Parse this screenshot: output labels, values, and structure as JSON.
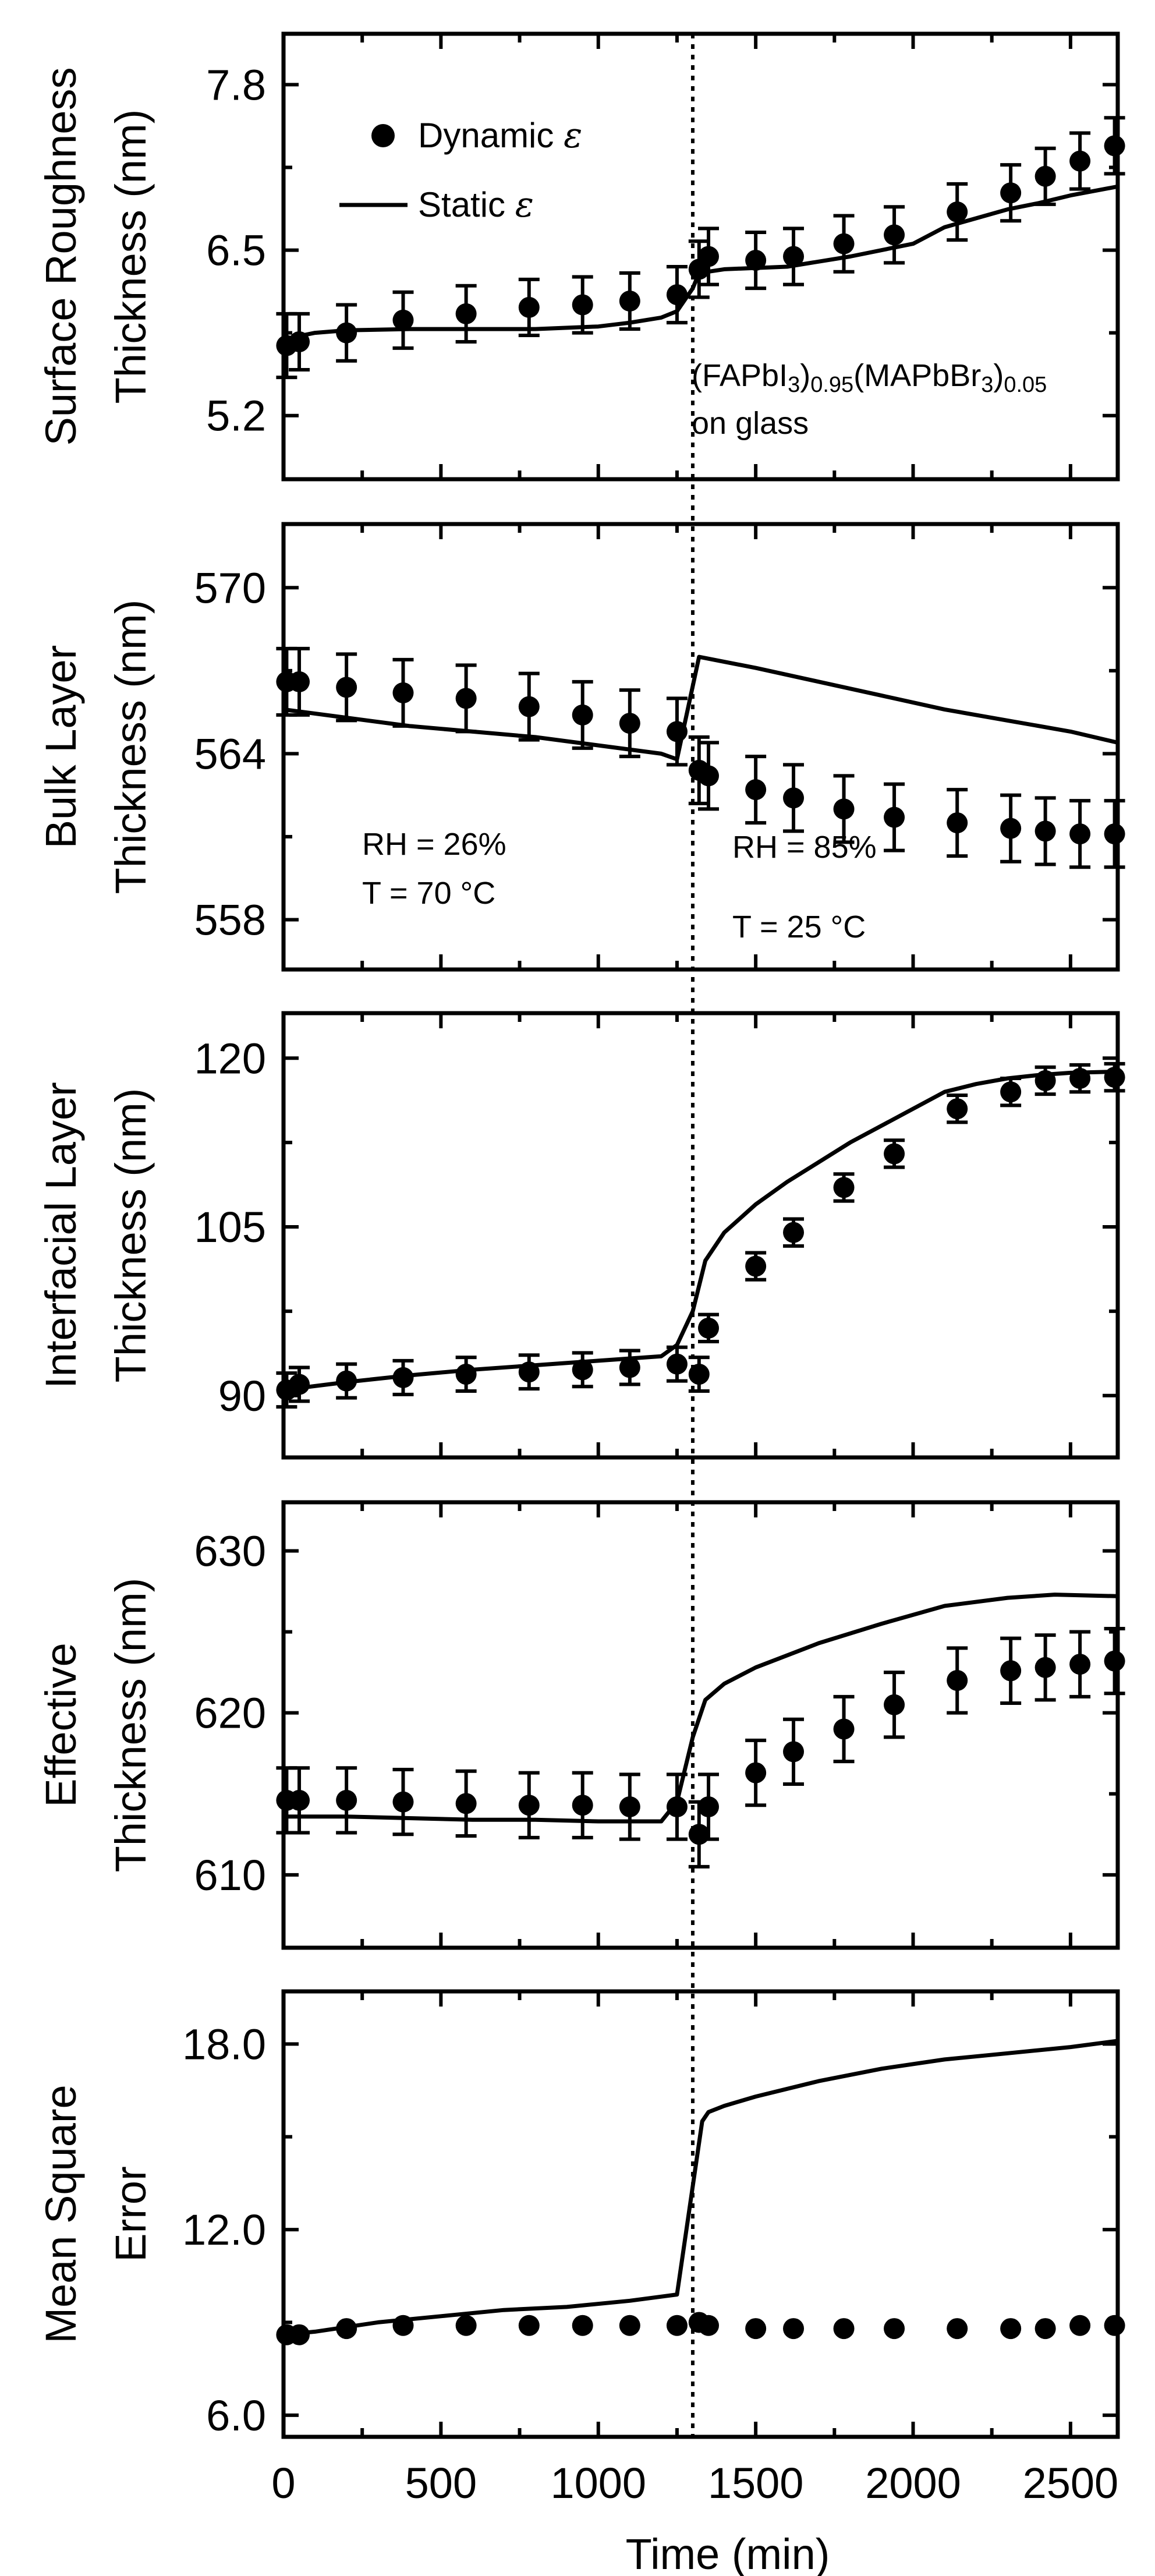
{
  "chart_data": {
    "type": "scatter",
    "figure": "Stacked panels sharing the time axis",
    "x_axis": {
      "label": "Time (min)",
      "range": [
        0,
        2650
      ],
      "ticks": [
        0,
        500,
        1000,
        1500,
        2000,
        2500
      ],
      "tick_labels": [
        "0",
        "500",
        "1000",
        "1500",
        "2000",
        "2500"
      ]
    },
    "condition_change_x": 1300,
    "legend": {
      "placement": "top-left",
      "dynamic_text": "Dynamic",
      "static_text": "Static",
      "symbol": "ε"
    },
    "material": {
      "line1": {
        "t1": "(FAPbI",
        "s1": "3",
        "t2": ")",
        "s2": "0.95",
        "t3": "(MAPbBr",
        "s3": "3",
        "t4": ")",
        "s4": "0.05"
      },
      "line2": "on glass"
    },
    "conditions": {
      "left_rh": "RH = 26%",
      "left_t": "T = 70 °C",
      "right_rh": "RH = 85%",
      "right_t": "T = 25 °C"
    },
    "panels": [
      {
        "id": "surface",
        "ylabel": [
          "Surface Roughness",
          "Thickness (nm)"
        ],
        "ylim": [
          4.7,
          8.2
        ],
        "yticks": [
          5.2,
          6.5,
          7.8
        ],
        "ytick_labels": [
          "5.2",
          "6.5",
          "7.8"
        ],
        "series": [
          {
            "name": "Dynamic ε",
            "kind": "points",
            "x": [
              10,
              50,
              200,
              380,
              580,
              780,
              950,
              1100,
              1250,
              1320,
              1350,
              1500,
              1620,
              1780,
              1940,
              2140,
              2310,
              2420,
              2530,
              2640
            ],
            "y": [
              5.75,
              5.78,
              5.85,
              5.95,
              6.0,
              6.05,
              6.07,
              6.1,
              6.15,
              6.35,
              6.45,
              6.42,
              6.45,
              6.55,
              6.62,
              6.8,
              6.95,
              7.08,
              7.2,
              7.32
            ],
            "err": [
              0.25,
              0.22,
              0.22,
              0.22,
              0.22,
              0.22,
              0.22,
              0.22,
              0.22,
              0.22,
              0.22,
              0.22,
              0.22,
              0.22,
              0.22,
              0.22,
              0.22,
              0.22,
              0.22,
              0.22
            ]
          },
          {
            "name": "Static ε",
            "kind": "line",
            "x": [
              0,
              100,
              200,
              400,
              600,
              800,
              1000,
              1100,
              1200,
              1250,
              1300,
              1320,
              1400,
              1600,
              1800,
              2000,
              2100,
              2200,
              2300,
              2400,
              2500,
              2650
            ],
            "y": [
              5.8,
              5.85,
              5.87,
              5.88,
              5.88,
              5.88,
              5.9,
              5.93,
              5.97,
              6.02,
              6.2,
              6.32,
              6.35,
              6.37,
              6.45,
              6.55,
              6.68,
              6.75,
              6.82,
              6.87,
              6.93,
              7.0
            ]
          }
        ]
      },
      {
        "id": "bulk",
        "ylabel": [
          "Bulk Layer",
          "Thickness (nm)"
        ],
        "ylim": [
          556.2,
          572.3
        ],
        "yticks": [
          558,
          564,
          570
        ],
        "ytick_labels": [
          "558",
          "564",
          "570"
        ],
        "series": [
          {
            "name": "Dynamic ε",
            "kind": "points",
            "x": [
              10,
              50,
              200,
              380,
              580,
              780,
              950,
              1100,
              1250,
              1320,
              1350,
              1500,
              1620,
              1780,
              1940,
              2140,
              2310,
              2420,
              2530,
              2640
            ],
            "y": [
              566.6,
              566.6,
              566.4,
              566.2,
              566.0,
              565.7,
              565.4,
              565.1,
              564.8,
              563.4,
              563.2,
              562.7,
              562.4,
              562.0,
              561.7,
              561.5,
              561.3,
              561.2,
              561.1,
              561.1
            ],
            "err": [
              1.2,
              1.2,
              1.2,
              1.2,
              1.2,
              1.2,
              1.2,
              1.2,
              1.2,
              1.2,
              1.2,
              1.2,
              1.2,
              1.2,
              1.2,
              1.2,
              1.2,
              1.2,
              1.2,
              1.2
            ]
          },
          {
            "name": "Static ε",
            "kind": "line",
            "x": [
              0,
              200,
              400,
              600,
              800,
              1000,
              1200,
              1250,
              1320,
              1500,
              1700,
              1900,
              2100,
              2300,
              2500,
              2650
            ],
            "y": [
              565.6,
              565.3,
              565.0,
              564.8,
              564.6,
              564.3,
              564.0,
              563.8,
              567.5,
              567.1,
              566.6,
              566.1,
              565.6,
              565.2,
              564.8,
              564.4
            ]
          }
        ]
      },
      {
        "id": "interfacial",
        "ylabel": [
          "Interfacial Layer",
          "Thickness (nm)"
        ],
        "ylim": [
          84.5,
          124
        ],
        "yticks": [
          90,
          105,
          120
        ],
        "ytick_labels": [
          "90",
          "105",
          "120"
        ],
        "series": [
          {
            "name": "Dynamic ε",
            "kind": "points",
            "x": [
              10,
              50,
              200,
              380,
              580,
              780,
              950,
              1100,
              1250,
              1320,
              1350,
              1500,
              1620,
              1780,
              1940,
              2140,
              2310,
              2420,
              2530,
              2640
            ],
            "y": [
              90.5,
              91.0,
              91.3,
              91.6,
              91.9,
              92.1,
              92.3,
              92.5,
              92.8,
              91.9,
              96.0,
              101.5,
              104.5,
              108.5,
              111.5,
              115.5,
              117.0,
              118.0,
              118.2,
              118.3
            ],
            "err": [
              1.5,
              1.5,
              1.5,
              1.5,
              1.5,
              1.5,
              1.5,
              1.5,
              1.5,
              1.5,
              1.2,
              1.2,
              1.2,
              1.2,
              1.2,
              1.2,
              1.2,
              1.2,
              1.2,
              1.2
            ]
          },
          {
            "name": "Static ε",
            "kind": "line",
            "x": [
              0,
              200,
              400,
              600,
              800,
              1000,
              1200,
              1250,
              1300,
              1340,
              1400,
              1500,
              1600,
              1800,
              2000,
              2100,
              2200,
              2300,
              2400,
              2500,
              2650
            ],
            "y": [
              90.5,
              91.2,
              91.8,
              92.3,
              92.7,
              93.1,
              93.5,
              94.5,
              97.5,
              102.0,
              104.5,
              107.0,
              109.0,
              112.5,
              115.5,
              117.0,
              117.7,
              118.2,
              118.5,
              118.7,
              118.8
            ]
          }
        ]
      },
      {
        "id": "effective",
        "ylabel": [
          "Effective",
          "Thickness (nm)"
        ],
        "ylim": [
          605.5,
          633
        ],
        "yticks": [
          610,
          620,
          630
        ],
        "ytick_labels": [
          "610",
          "620",
          "630"
        ],
        "series": [
          {
            "name": "Dynamic ε",
            "kind": "points",
            "x": [
              10,
              50,
              200,
              380,
              580,
              780,
              950,
              1100,
              1250,
              1320,
              1350,
              1500,
              1620,
              1780,
              1940,
              2140,
              2310,
              2420,
              2530,
              2640
            ],
            "y": [
              614.6,
              614.6,
              614.6,
              614.5,
              614.4,
              614.3,
              614.3,
              614.2,
              614.2,
              612.5,
              614.2,
              616.3,
              617.6,
              619.0,
              620.5,
              622.0,
              622.6,
              622.8,
              623.0,
              623.2
            ],
            "err": [
              2.0,
              2.0,
              2.0,
              2.0,
              2.0,
              2.0,
              2.0,
              2.0,
              2.0,
              2.0,
              2.0,
              2.0,
              2.0,
              2.0,
              2.0,
              2.0,
              2.0,
              2.0,
              2.0,
              2.0
            ]
          },
          {
            "name": "Static ε",
            "kind": "line",
            "x": [
              0,
              200,
              400,
              600,
              800,
              1000,
              1200,
              1250,
              1300,
              1340,
              1400,
              1500,
              1700,
              1900,
              2100,
              2300,
              2450,
              2650
            ],
            "y": [
              613.6,
              613.6,
              613.5,
              613.4,
              613.4,
              613.3,
              613.3,
              614.5,
              618.5,
              620.8,
              621.8,
              622.8,
              624.3,
              625.5,
              626.6,
              627.1,
              627.3,
              627.2
            ]
          }
        ]
      },
      {
        "id": "mse",
        "ylabel": [
          "Mean Square",
          "Error"
        ],
        "ylim": [
          5.3,
          19.7
        ],
        "yticks": [
          6.0,
          12.0,
          18.0
        ],
        "ytick_labels": [
          "6.0",
          "12.0",
          "18.0"
        ],
        "series": [
          {
            "name": "Dynamic ε",
            "kind": "points",
            "x": [
              10,
              50,
              200,
              380,
              580,
              780,
              950,
              1100,
              1250,
              1320,
              1350,
              1500,
              1620,
              1780,
              1940,
              2140,
              2310,
              2420,
              2530,
              2640
            ],
            "y": [
              8.6,
              8.6,
              8.8,
              8.9,
              8.9,
              8.9,
              8.9,
              8.9,
              8.9,
              9.0,
              8.9,
              8.8,
              8.8,
              8.8,
              8.8,
              8.8,
              8.8,
              8.8,
              8.9,
              8.9
            ],
            "err": [
              0,
              0,
              0,
              0,
              0,
              0,
              0,
              0,
              0,
              0,
              0,
              0,
              0,
              0,
              0,
              0,
              0,
              0,
              0,
              0
            ]
          },
          {
            "name": "Static ε",
            "kind": "line",
            "x": [
              0,
              100,
              300,
              500,
              700,
              900,
              1100,
              1250,
              1330,
              1350,
              1400,
              1500,
              1700,
              1900,
              2100,
              2300,
              2500,
              2650
            ],
            "y": [
              8.6,
              8.7,
              9.0,
              9.2,
              9.4,
              9.5,
              9.7,
              9.9,
              15.5,
              15.8,
              16.0,
              16.3,
              16.8,
              17.2,
              17.5,
              17.7,
              17.9,
              18.1
            ]
          }
        ]
      }
    ]
  }
}
